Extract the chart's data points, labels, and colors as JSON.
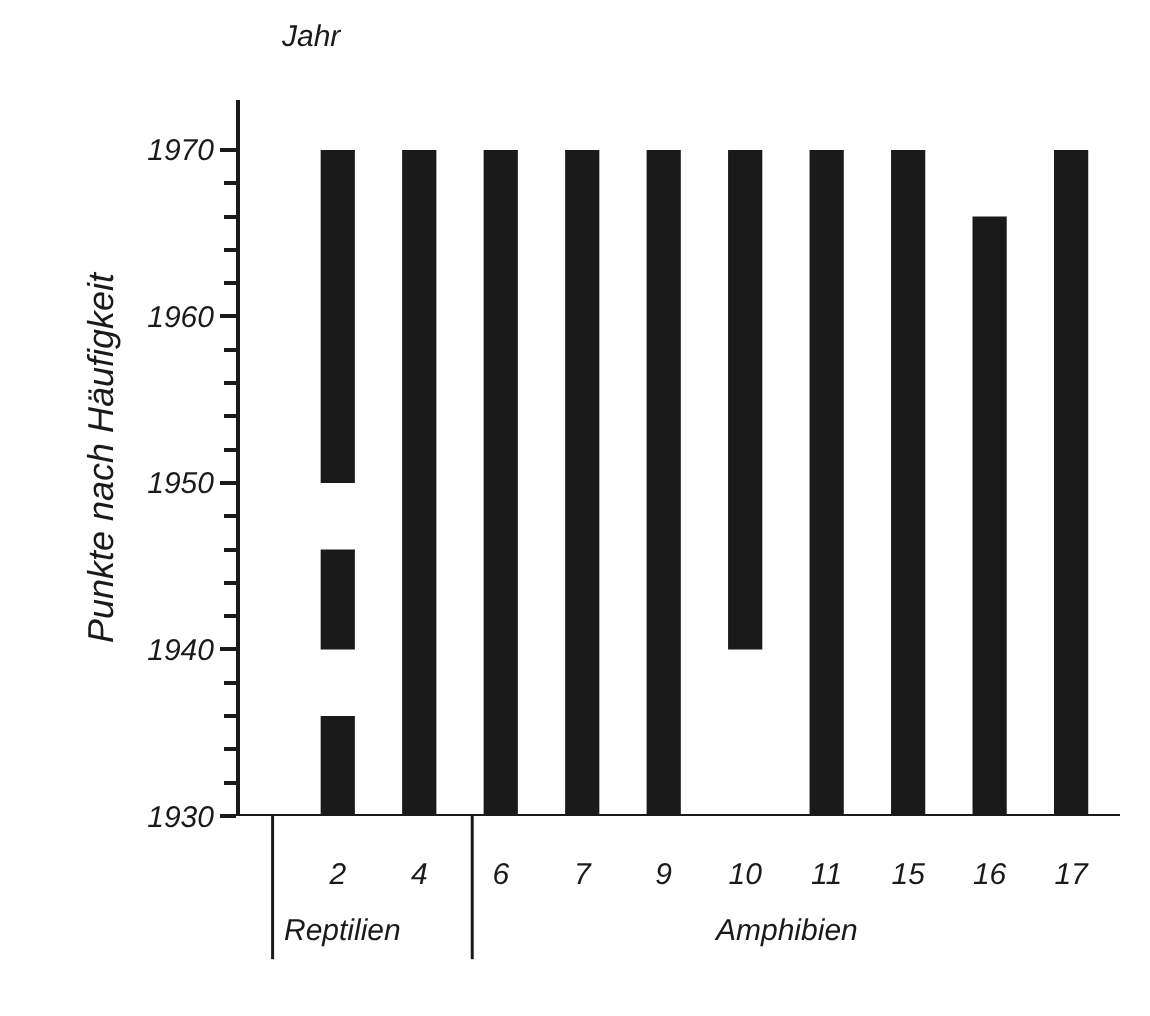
{
  "chart_data": {
    "type": "bar",
    "ylabel": "Punkte nach Häufigkeit",
    "categories": [
      "2",
      "4",
      "6",
      "7",
      "9",
      "10",
      "11",
      "15",
      "16",
      "17"
    ],
    "series": [
      {
        "color": "#1a1a1a",
        "base": [
          1950,
          1930,
          1930,
          1930,
          1930,
          1940,
          1930,
          1930,
          1930,
          1930
        ],
        "values": [
          20,
          40,
          40,
          40,
          40,
          30,
          40,
          40,
          36,
          40
        ]
      },
      {
        "color": "#1a1a1a",
        "base": [
          1940,
          null,
          null,
          null,
          null,
          null,
          null,
          null,
          null,
          null
        ],
        "values": [
          6,
          null,
          null,
          null,
          null,
          null,
          null,
          null,
          null,
          null
        ]
      },
      {
        "color": "#1a1a1a",
        "base": [
          1930,
          null,
          null,
          null,
          null,
          null,
          null,
          null,
          null,
          null
        ],
        "values": [
          6,
          null,
          null,
          null,
          null,
          null,
          null,
          null,
          null,
          null
        ]
      }
    ],
    "ylim": [
      1930,
      1973
    ],
    "yticks": [
      1930,
      {
        "value": 1932,
        "label": null
      },
      {
        "value": 1934,
        "label": null
      },
      {
        "value": 1936,
        "label": null
      },
      {
        "value": 1938,
        "label": null
      },
      1940,
      {
        "value": 1942,
        "label": null
      },
      {
        "value": 1944,
        "label": null
      },
      {
        "value": 1946,
        "label": null
      },
      {
        "value": 1948,
        "label": null
      },
      1950,
      {
        "value": 1952,
        "label": null
      },
      {
        "value": 1954,
        "label": null
      },
      {
        "value": 1956,
        "label": null
      },
      {
        "value": 1958,
        "label": null
      },
      1960,
      {
        "value": 1962,
        "label": null
      },
      {
        "value": 1964,
        "label": null
      },
      {
        "value": 1966,
        "label": null
      },
      {
        "value": 1968,
        "label": null
      },
      1970
    ],
    "annotations": [
      "Jahr",
      "Reptilien",
      "Amphibien"
    ]
  }
}
